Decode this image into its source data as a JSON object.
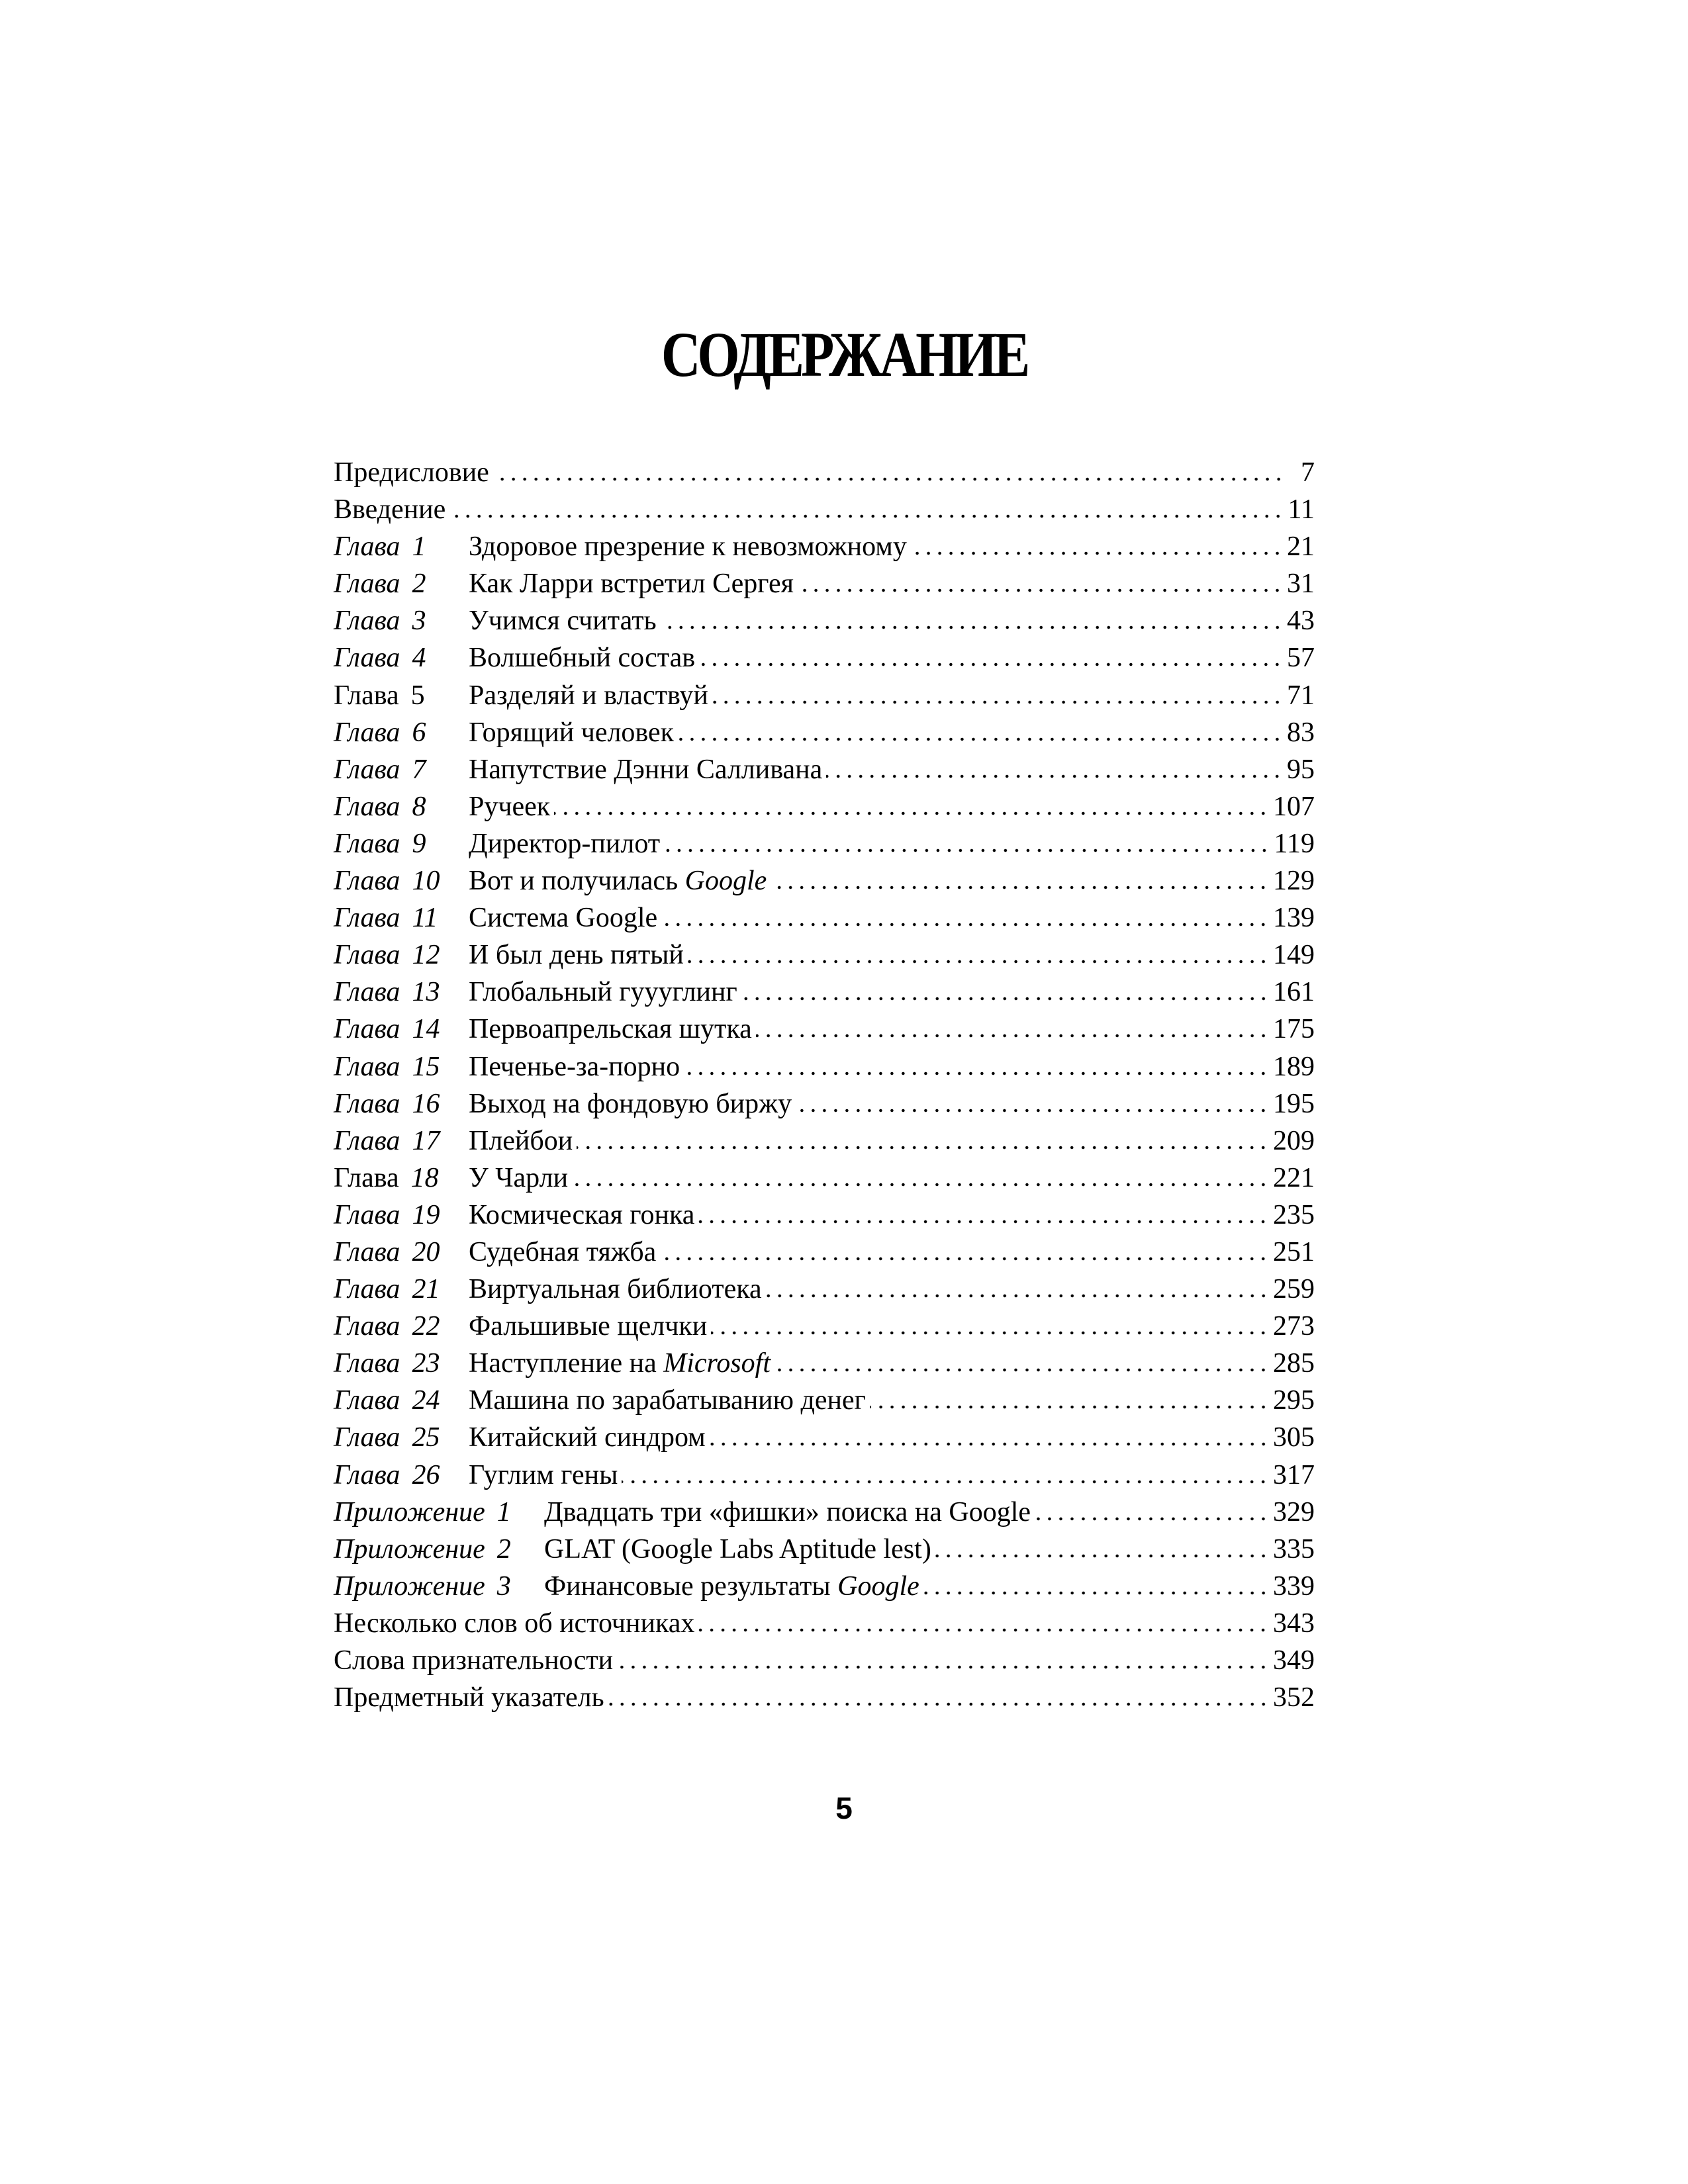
{
  "title": "СОДЕРЖАНИЕ",
  "page_number": "5",
  "entries": [
    {
      "title": "Предисловие",
      "page": "7"
    },
    {
      "title": "Введение",
      "page": "11"
    },
    {
      "kind": "ch",
      "label": "Глава",
      "num": "1",
      "italic_label": true,
      "title": "Здоровое презрение к невозможному",
      "page": "21"
    },
    {
      "kind": "ch",
      "label": "Глава",
      "num": "2",
      "italic_label": true,
      "title": "Как Ларри встретил Сергея",
      "page": "31"
    },
    {
      "kind": "ch",
      "label": "Глава",
      "num": "3",
      "italic_label": true,
      "title": "Учимся считать",
      "page": "43"
    },
    {
      "kind": "ch",
      "label": "Глава",
      "num": "4",
      "italic_label": true,
      "title": "Волшебный состав",
      "page": "57"
    },
    {
      "kind": "ch",
      "label": "Глава",
      "num": "5",
      "italic_label": false,
      "italic_num": false,
      "title": "Разделяй и властвуй",
      "page": "71"
    },
    {
      "kind": "ch",
      "label": "Глава",
      "num": "6",
      "italic_label": true,
      "title": "Горящий человек",
      "page": "83"
    },
    {
      "kind": "ch",
      "label": "Глава",
      "num": "7",
      "italic_label": true,
      "title": "Напутствие Дэнни Салливана",
      "page": "95"
    },
    {
      "kind": "ch",
      "label": "Глава",
      "num": "8",
      "italic_label": true,
      "title": "Ручеек",
      "page": "107"
    },
    {
      "kind": "ch",
      "label": "Глава",
      "num": "9",
      "italic_label": true,
      "title": "Директор-пилот",
      "page": "119"
    },
    {
      "kind": "ch",
      "label": "Глава",
      "num": "10",
      "italic_label": true,
      "title": "Вот и получилась ",
      "title_em": "Google",
      "page": "129"
    },
    {
      "kind": "ch",
      "label": "Глава",
      "num": "11",
      "italic_label": true,
      "title": "Система Google",
      "page": "139"
    },
    {
      "kind": "ch",
      "label": "Глава",
      "num": "12",
      "italic_label": true,
      "title": "И был день пятый",
      "page": "149"
    },
    {
      "kind": "ch",
      "label": "Глава",
      "num": "13",
      "italic_label": true,
      "title": "Глобальный гуууглинг",
      "page": "161"
    },
    {
      "kind": "ch",
      "label": "Глава",
      "num": "14",
      "italic_label": true,
      "title": "Первоапрельская шутка",
      "page": "175"
    },
    {
      "kind": "ch",
      "label": "Глава",
      "num": "15",
      "italic_label": true,
      "title": "Печенье-за-порно",
      "page": "189"
    },
    {
      "kind": "ch",
      "label": "Глава",
      "num": "16",
      "italic_label": true,
      "title": "Выход на фондовую биржу",
      "page": "195"
    },
    {
      "kind": "ch",
      "label": "Глава",
      "num": "17",
      "italic_label": true,
      "title": "Плейбои",
      "page": "209"
    },
    {
      "kind": "ch",
      "label": "Глава",
      "num": "18",
      "italic_label": false,
      "italic_num": true,
      "title": "У Чарли",
      "page": "221"
    },
    {
      "kind": "ch",
      "label": "Глава",
      "num": "19",
      "italic_label": true,
      "title": "Космическая гонка",
      "page": "235"
    },
    {
      "kind": "ch",
      "label": "Глава",
      "num": "20",
      "italic_label": true,
      "title": "Судебная тяжба",
      "page": "251"
    },
    {
      "kind": "ch",
      "label": "Глава",
      "num": "21",
      "italic_label": true,
      "title": "Виртуальная библиотека",
      "page": "259"
    },
    {
      "kind": "ch",
      "label": "Глава",
      "num": "22",
      "italic_label": true,
      "title": "Фальшивые щелчки",
      "page": "273"
    },
    {
      "kind": "ch",
      "label": "Глава",
      "num": "23",
      "italic_label": true,
      "title": "Наступление на ",
      "title_em": "Microsoft",
      "page": "285"
    },
    {
      "kind": "ch",
      "label": "Глава",
      "num": "24",
      "italic_label": true,
      "title": "Машина по зарабатыванию денег",
      "page": "295"
    },
    {
      "kind": "ch",
      "label": "Глава",
      "num": "25",
      "italic_label": true,
      "title": "Китайский синдром",
      "page": "305"
    },
    {
      "kind": "ch",
      "label": "Глава",
      "num": "26",
      "italic_label": true,
      "title": "Гуглим гены",
      "page": "317"
    },
    {
      "kind": "app",
      "label": "Приложение",
      "num": "1",
      "italic_label": true,
      "title": "Двадцать три «фишки» поиска на Google",
      "page": "329"
    },
    {
      "kind": "app",
      "label": "Приложение",
      "num": "2",
      "italic_label": true,
      "title": "GLAT (Google Labs Aptitude lest)",
      "page": "335"
    },
    {
      "kind": "app",
      "label": "Приложение",
      "num": "3",
      "italic_label": true,
      "title": "Финансовые результаты ",
      "title_em": "Google",
      "page": "339"
    },
    {
      "title": "Несколько слов об источниках",
      "page": "343"
    },
    {
      "title": "Слова признательности",
      "page": "349"
    },
    {
      "title": "Предметный указатель",
      "page": "352"
    }
  ]
}
